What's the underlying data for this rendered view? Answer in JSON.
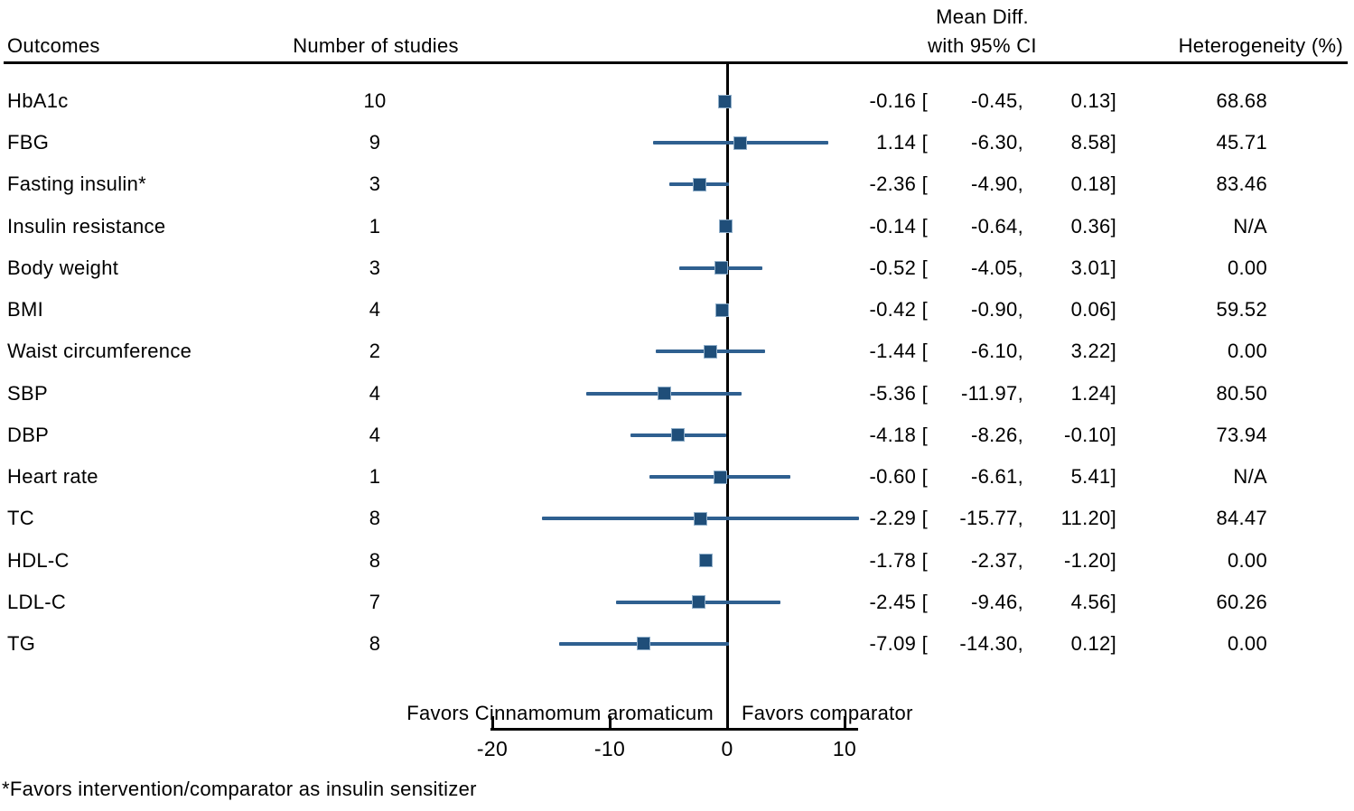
{
  "columns": {
    "outcomes": "Outcomes",
    "n_studies": "Number of studies",
    "mean_diff_line1": "Mean Diff.",
    "mean_diff_line2": "with 95% CI",
    "heterogeneity": "Heterogeneity (%)"
  },
  "footnote": "*Favors intervention/comparator as insulin sensitizer",
  "colors": {
    "marker": "#1F4E79",
    "marker_edge": "#8FAEC9",
    "ci_line": "#2F6090",
    "axis": "#000000"
  },
  "chart_data": {
    "type": "forest",
    "x_axis": {
      "ticks": [
        -20,
        -10,
        0,
        10
      ],
      "tick_labels": [
        "-20",
        "-10",
        "0",
        "10"
      ],
      "zero_reference": 0,
      "range": [
        -20.2,
        11.2
      ]
    },
    "favors_left": "Favors Cinnamomum aromaticum",
    "favors_right": "Favors comparator",
    "rows": [
      {
        "outcome": "HbA1c",
        "n": "10",
        "est": -0.16,
        "low": -0.45,
        "high": 0.13,
        "est_fmt": "-0.16 [",
        "low_fmt": "-0.45,",
        "high_fmt": "0.13]",
        "heterogeneity": "68.68"
      },
      {
        "outcome": "FBG",
        "n": "9",
        "est": 1.14,
        "low": -6.3,
        "high": 8.58,
        "est_fmt": "1.14 [",
        "low_fmt": "-6.30,",
        "high_fmt": "8.58]",
        "heterogeneity": "45.71"
      },
      {
        "outcome": "Fasting insulin*",
        "n": "3",
        "est": -2.36,
        "low": -4.9,
        "high": 0.18,
        "est_fmt": "-2.36 [",
        "low_fmt": "-4.90,",
        "high_fmt": "0.18]",
        "heterogeneity": "83.46"
      },
      {
        "outcome": "Insulin resistance",
        "n": "1",
        "est": -0.14,
        "low": -0.64,
        "high": 0.36,
        "est_fmt": "-0.14 [",
        "low_fmt": "-0.64,",
        "high_fmt": "0.36]",
        "heterogeneity": "N/A"
      },
      {
        "outcome": "Body weight",
        "n": "3",
        "est": -0.52,
        "low": -4.05,
        "high": 3.01,
        "est_fmt": "-0.52 [",
        "low_fmt": "-4.05,",
        "high_fmt": "3.01]",
        "heterogeneity": "0.00"
      },
      {
        "outcome": "BMI",
        "n": "4",
        "est": -0.42,
        "low": -0.9,
        "high": 0.06,
        "est_fmt": "-0.42 [",
        "low_fmt": "-0.90,",
        "high_fmt": "0.06]",
        "heterogeneity": "59.52"
      },
      {
        "outcome": "Waist circumference",
        "n": "2",
        "est": -1.44,
        "low": -6.1,
        "high": 3.22,
        "est_fmt": "-1.44 [",
        "low_fmt": "-6.10,",
        "high_fmt": "3.22]",
        "heterogeneity": "0.00"
      },
      {
        "outcome": "SBP",
        "n": "4",
        "est": -5.36,
        "low": -11.97,
        "high": 1.24,
        "est_fmt": "-5.36 [",
        "low_fmt": "-11.97,",
        "high_fmt": "1.24]",
        "heterogeneity": "80.50"
      },
      {
        "outcome": "DBP",
        "n": "4",
        "est": -4.18,
        "low": -8.26,
        "high": -0.1,
        "est_fmt": "-4.18 [",
        "low_fmt": "-8.26,",
        "high_fmt": "-0.10]",
        "heterogeneity": "73.94"
      },
      {
        "outcome": "Heart rate",
        "n": "1",
        "est": -0.6,
        "low": -6.61,
        "high": 5.41,
        "est_fmt": "-0.60 [",
        "low_fmt": "-6.61,",
        "high_fmt": "5.41]",
        "heterogeneity": "N/A"
      },
      {
        "outcome": "TC",
        "n": "8",
        "est": -2.29,
        "low": -15.77,
        "high": 11.2,
        "est_fmt": "-2.29 [",
        "low_fmt": "-15.77,",
        "high_fmt": "11.20]",
        "heterogeneity": "84.47"
      },
      {
        "outcome": "HDL-C",
        "n": "8",
        "est": -1.78,
        "low": -2.37,
        "high": -1.2,
        "est_fmt": "-1.78 [",
        "low_fmt": "-2.37,",
        "high_fmt": "-1.20]",
        "heterogeneity": "0.00"
      },
      {
        "outcome": "LDL-C",
        "n": "7",
        "est": -2.45,
        "low": -9.46,
        "high": 4.56,
        "est_fmt": "-2.45 [",
        "low_fmt": "-9.46,",
        "high_fmt": "4.56]",
        "heterogeneity": "60.26"
      },
      {
        "outcome": "TG",
        "n": "8",
        "est": -7.09,
        "low": -14.3,
        "high": 0.12,
        "est_fmt": "-7.09 [",
        "low_fmt": "-14.30,",
        "high_fmt": "0.12]",
        "heterogeneity": "0.00"
      }
    ]
  }
}
